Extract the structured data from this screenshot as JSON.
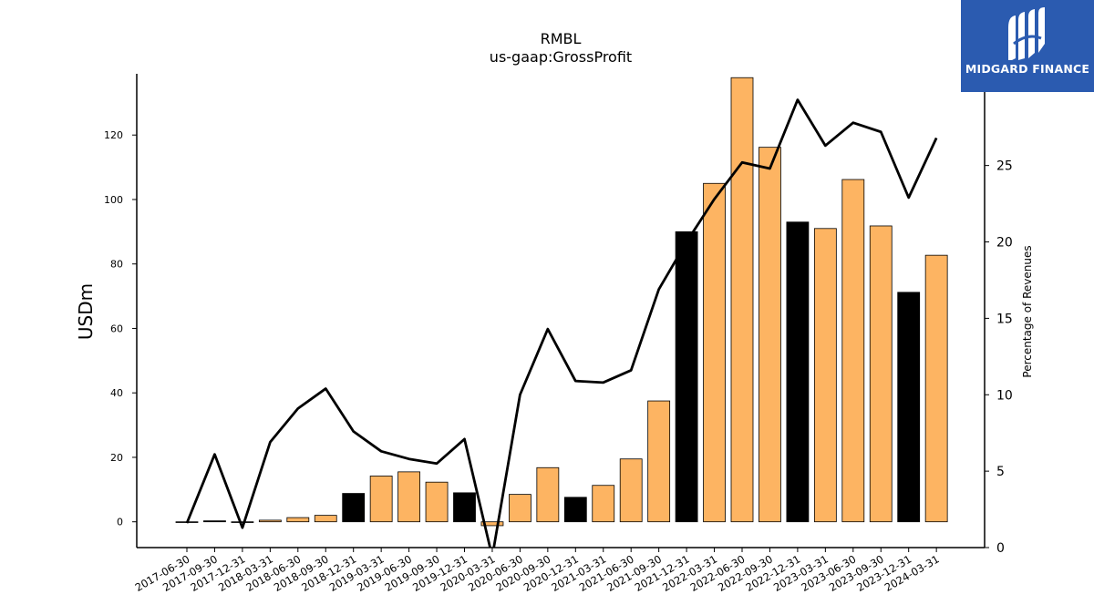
{
  "chart_data": {
    "type": "bar",
    "title": "RMBL",
    "subtitle": "us-gaap:GrossProfit",
    "ylabel": "USDm",
    "y2label": "Percentage of Revenues",
    "ylim": [
      -8,
      139
    ],
    "y2lim": [
      0,
      31
    ],
    "yticks": [
      0,
      20,
      40,
      60,
      80,
      100,
      120
    ],
    "y2ticks": [
      0,
      5,
      10,
      15,
      20,
      25
    ],
    "categories": [
      "2017-06-30",
      "2017-09-30",
      "2017-12-31",
      "2018-03-31",
      "2018-06-30",
      "2018-09-30",
      "2018-12-31",
      "2019-03-31",
      "2019-06-30",
      "2019-09-30",
      "2019-12-31",
      "2020-03-31",
      "2020-06-30",
      "2020-09-30",
      "2020-12-31",
      "2021-03-31",
      "2021-06-30",
      "2021-09-30",
      "2021-12-31",
      "2022-03-31",
      "2022-06-30",
      "2022-09-30",
      "2022-12-31",
      "2023-03-31",
      "2023-06-30",
      "2023-09-30",
      "2023-12-31",
      "2024-03-31"
    ],
    "series": [
      {
        "kind": "bar",
        "values": [
          0.0,
          0.3,
          0.0,
          0.5,
          1.3,
          2.0,
          8.8,
          14.2,
          15.5,
          12.3,
          9.0,
          -1.2,
          8.5,
          16.8,
          7.6,
          11.3,
          19.5,
          37.5,
          90.0,
          105.0,
          137.8,
          116.2,
          93.0,
          91.0,
          106.2,
          91.8,
          71.2,
          82.7
        ],
        "colors": [
          "#fdb462",
          "#000000",
          "#fdb462",
          "#fdb462",
          "#fdb462",
          "#fdb462",
          "#000000",
          "#fdb462",
          "#fdb462",
          "#fdb462",
          "#000000",
          "#fdb462",
          "#fdb462",
          "#fdb462",
          "#000000",
          "#fdb462",
          "#fdb462",
          "#fdb462",
          "#000000",
          "#fdb462",
          "#fdb462",
          "#fdb462",
          "#000000",
          "#fdb462",
          "#fdb462",
          "#fdb462",
          "#000000",
          "#fdb462"
        ]
      },
      {
        "kind": "line",
        "axis": "right",
        "values": [
          1.6,
          6.1,
          1.3,
          6.9,
          9.1,
          10.4,
          7.6,
          6.3,
          5.8,
          5.5,
          7.1,
          -0.6,
          10.0,
          14.3,
          10.9,
          10.8,
          11.6,
          16.9,
          20.0,
          22.8,
          25.2,
          24.8,
          29.3,
          26.3,
          27.8,
          27.2,
          22.9,
          26.8
        ],
        "color": "#000000"
      }
    ],
    "grid": false
  },
  "logo": {
    "text": "MIDGARD FINANCE",
    "background": "#2b5bb0"
  }
}
